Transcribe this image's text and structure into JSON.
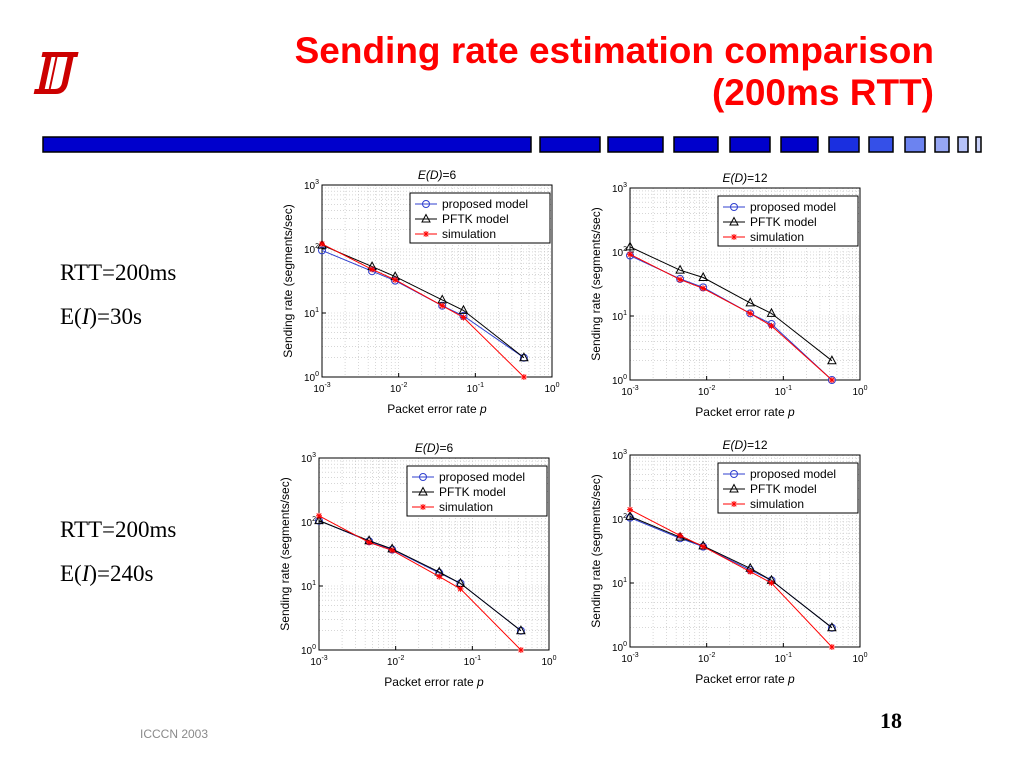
{
  "slide": {
    "title_line1": "Sending rate estimation comparison",
    "title_line2": "(200ms RTT)",
    "footer": "ICCCN 2003",
    "page_number": "18"
  },
  "colors": {
    "title": "#ff0000",
    "bar": "#0000cc",
    "proposed": "#2f3fcf",
    "pftk": "#000000",
    "simulation": "#ff0000"
  },
  "groups": [
    {
      "rtt": "RTT=200ms",
      "ei_prefix": "E(",
      "ei_var": "I",
      "ei_suffix": ")=30s"
    },
    {
      "rtt": "RTT=200ms",
      "ei_prefix": "E(",
      "ei_var": "I",
      "ei_suffix": ")=240s"
    }
  ],
  "legend": {
    "proposed": "proposed model",
    "pftk": "PFTK model",
    "simulation": "simulation"
  },
  "chart_data": [
    {
      "type": "line",
      "title_var": "E(D)",
      "title_value": "=6",
      "xlabel": "Packet error rate",
      "xlabel_var": "p",
      "ylabel": "Sending rate (segments/sec)",
      "xscale": "log",
      "yscale": "log",
      "xlim": [
        0.001,
        1
      ],
      "ylim": [
        1,
        1000
      ],
      "xticks": [
        "10-3",
        "10-2",
        "10-1",
        "100"
      ],
      "yticks": [
        "100",
        "101",
        "102",
        "103"
      ],
      "grid": true,
      "legend_position": "top-right",
      "x": [
        0.001,
        0.0045,
        0.009,
        0.037,
        0.07,
        0.43
      ],
      "series": [
        {
          "name": "proposed model",
          "values": [
            95,
            45,
            32,
            13,
            9,
            2
          ]
        },
        {
          "name": "PFTK model",
          "values": [
            115,
            53,
            37,
            16,
            11,
            2
          ]
        },
        {
          "name": "simulation",
          "values": [
            120,
            48,
            33,
            13,
            8.5,
            1
          ]
        }
      ]
    },
    {
      "type": "line",
      "title_var": "E(D)",
      "title_value": "=12",
      "xlabel": "Packet error rate",
      "xlabel_var": "p",
      "ylabel": "Sending rate (segments/sec)",
      "xscale": "log",
      "yscale": "log",
      "xlim": [
        0.001,
        1
      ],
      "ylim": [
        1,
        1000
      ],
      "xticks": [
        "10-3",
        "10-2",
        "10-1",
        "100"
      ],
      "yticks": [
        "100",
        "101",
        "102",
        "103"
      ],
      "grid": true,
      "legend_position": "top-right",
      "x": [
        0.001,
        0.0045,
        0.009,
        0.037,
        0.07,
        0.43
      ],
      "series": [
        {
          "name": "proposed model",
          "values": [
            88,
            38,
            28,
            11,
            7.5,
            1
          ]
        },
        {
          "name": "PFTK model",
          "values": [
            120,
            52,
            40,
            16,
            11,
            2
          ]
        },
        {
          "name": "simulation",
          "values": [
            92,
            37,
            27,
            11,
            7,
            1
          ]
        }
      ]
    },
    {
      "type": "line",
      "title_var": "E(D)",
      "title_value": "=6",
      "xlabel": "Packet error rate",
      "xlabel_var": "p",
      "ylabel": "Sending rate (segments/sec)",
      "xscale": "log",
      "yscale": "log",
      "xlim": [
        0.001,
        1
      ],
      "ylim": [
        1,
        1000
      ],
      "xticks": [
        "10-3",
        "10-2",
        "10-1",
        "100"
      ],
      "yticks": [
        "100",
        "101",
        "102",
        "103"
      ],
      "grid": true,
      "legend_position": "top-right",
      "x": [
        0.001,
        0.0045,
        0.009,
        0.037,
        0.07,
        0.43
      ],
      "series": [
        {
          "name": "proposed model",
          "values": [
            105,
            50,
            37,
            16,
            11,
            2
          ]
        },
        {
          "name": "PFTK model",
          "values": [
            105,
            51,
            38,
            16.5,
            11,
            2
          ]
        },
        {
          "name": "simulation",
          "values": [
            125,
            48,
            36,
            14,
            9,
            1
          ]
        }
      ]
    },
    {
      "type": "line",
      "title_var": "E(D)",
      "title_value": "=12",
      "xlabel": "Packet error rate",
      "xlabel_var": "p",
      "ylabel": "Sending rate (segments/sec)",
      "xscale": "log",
      "yscale": "log",
      "xlim": [
        0.001,
        1
      ],
      "ylim": [
        1,
        1000
      ],
      "xticks": [
        "10-3",
        "10-2",
        "10-1",
        "100"
      ],
      "yticks": [
        "100",
        "101",
        "102",
        "103"
      ],
      "grid": true,
      "legend_position": "top-right",
      "x": [
        0.001,
        0.0045,
        0.009,
        0.037,
        0.07,
        0.43
      ],
      "series": [
        {
          "name": "proposed model",
          "values": [
            105,
            50,
            37,
            16,
            11,
            2
          ]
        },
        {
          "name": "PFTK model",
          "values": [
            110,
            52,
            38,
            17,
            11,
            2
          ]
        },
        {
          "name": "simulation",
          "values": [
            140,
            55,
            37,
            15,
            10,
            1
          ]
        }
      ]
    }
  ]
}
